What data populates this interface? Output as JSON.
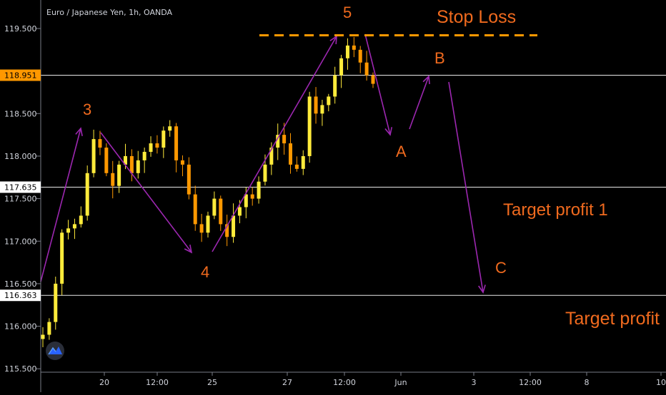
{
  "chart_data": {
    "type": "candlestick",
    "title": "Euro / Japanese Yen, 1h, OANDA",
    "y_ticks": [
      "119.500",
      "118.500",
      "118.000",
      "117.500",
      "117.000",
      "116.500",
      "116.000",
      "115.500"
    ],
    "y_tick_values": [
      119.5,
      118.5,
      118.0,
      117.5,
      117.0,
      116.5,
      116.0,
      115.5
    ],
    "ylim": [
      115.48,
      119.82
    ],
    "x_ticks": [
      "20",
      "12:00",
      "25",
      "27",
      "12:00",
      "Jun",
      "3",
      "12:00",
      "8",
      "10"
    ],
    "grid": false,
    "horizontal_levels": [
      {
        "label": "118.951",
        "value": 118.951,
        "badge_color": "#ff9800"
      },
      {
        "label": "117.635",
        "value": 117.635,
        "badge_color": "#ffffff"
      },
      {
        "label": "116.363",
        "value": 116.363,
        "badge_color": "#ffffff"
      }
    ],
    "stop_loss_value": 119.42,
    "close_series": [
      115.9,
      116.05,
      116.5,
      117.1,
      117.15,
      117.2,
      117.3,
      117.8,
      118.2,
      118.1,
      117.8,
      117.65,
      117.9,
      118.0,
      117.8,
      117.95,
      118.05,
      118.15,
      118.1,
      118.3,
      118.35,
      117.95,
      117.9,
      117.55,
      117.2,
      117.1,
      117.3,
      117.5,
      117.2,
      117.05,
      117.3,
      117.4,
      117.55,
      117.5,
      117.7,
      117.9,
      118.1,
      118.25,
      118.15,
      117.9,
      117.85,
      118.0,
      118.7,
      118.5,
      118.6,
      118.7,
      118.95,
      119.15,
      119.3,
      119.25,
      119.1,
      118.95,
      118.85
    ],
    "up_color": "#ffeb3b",
    "down_color": "#ff9800",
    "wave_labels": [
      "3",
      "4",
      "5",
      "A",
      "B",
      "C"
    ],
    "annotations": [
      "Stop Loss",
      "Target profit 1",
      "Target profit"
    ],
    "annotation_color": "#f06a1e",
    "arrow_color": "#9c27b0"
  }
}
